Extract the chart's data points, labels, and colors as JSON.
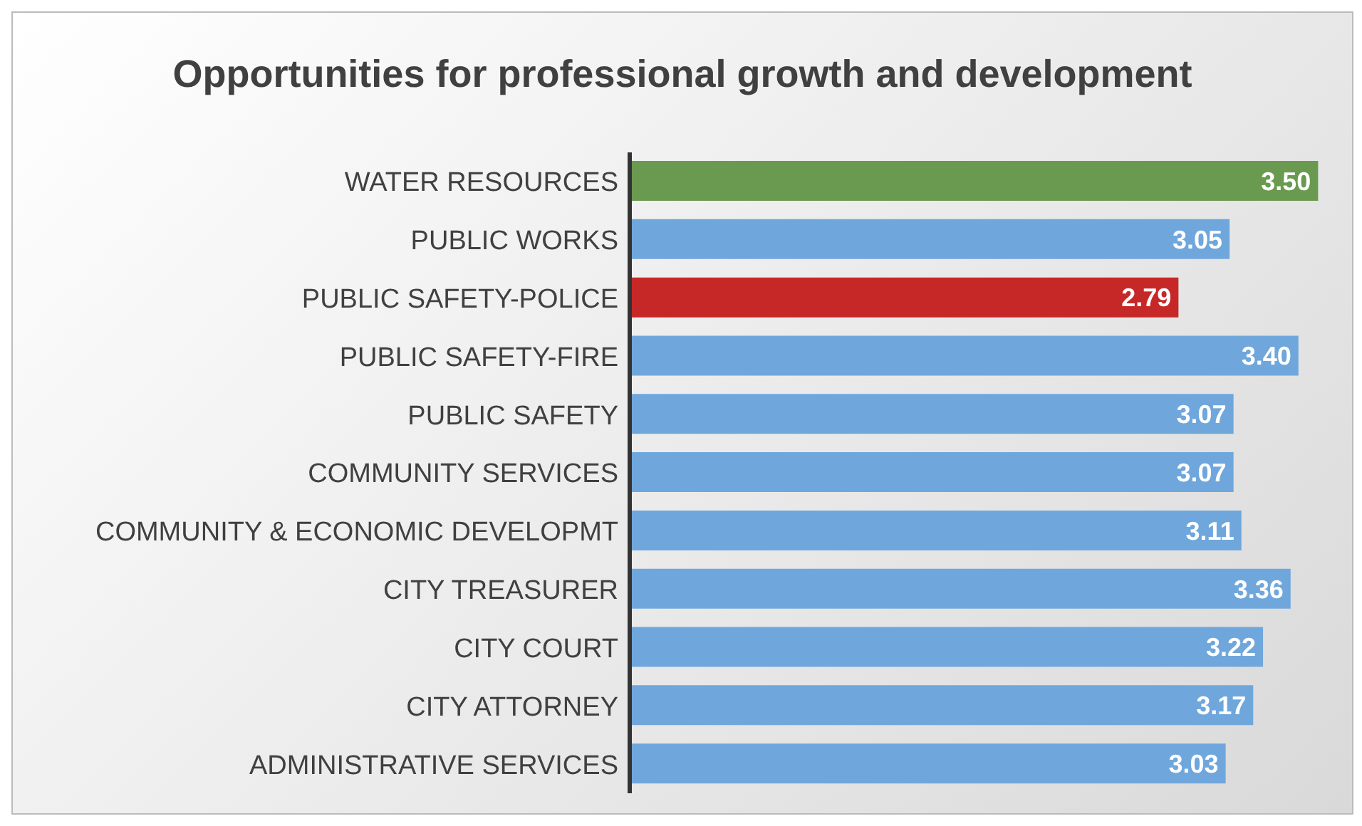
{
  "chart_data": {
    "type": "bar",
    "orientation": "horizontal",
    "title": "Opportunities for professional growth and development",
    "categories": [
      "WATER RESOURCES",
      "PUBLIC WORKS",
      "PUBLIC SAFETY-POLICE",
      "PUBLIC SAFETY-FIRE",
      "PUBLIC SAFETY",
      "COMMUNITY SERVICES",
      "COMMUNITY & ECONOMIC DEVELOPMT",
      "CITY TREASURER",
      "CITY COURT",
      "CITY ATTORNEY",
      "ADMINISTRATIVE SERVICES"
    ],
    "values": [
      3.5,
      3.05,
      2.79,
      3.4,
      3.07,
      3.07,
      3.11,
      3.36,
      3.22,
      3.17,
      3.03
    ],
    "value_labels": [
      "3.50",
      "3.05",
      "2.79",
      "3.40",
      "3.07",
      "3.07",
      "3.11",
      "3.36",
      "3.22",
      "3.17",
      "3.03"
    ],
    "colors": [
      "#6a9a50",
      "#6fa7dc",
      "#c62828",
      "#6fa7dc",
      "#6fa7dc",
      "#6fa7dc",
      "#6fa7dc",
      "#6fa7dc",
      "#6fa7dc",
      "#6fa7dc",
      "#6fa7dc"
    ],
    "tick_labels": "y"
  }
}
